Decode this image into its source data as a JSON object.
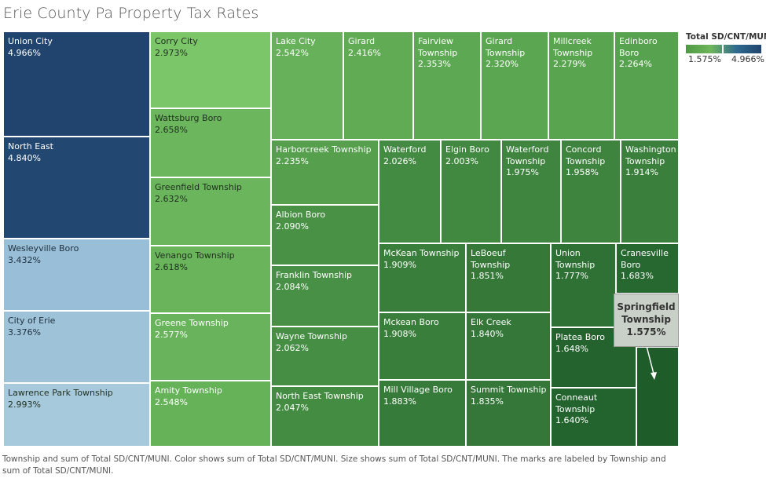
{
  "title": "Erie County Pa Property Tax Rates",
  "caption": "Township and sum of Total SD/CNT/MUNI.  Color shows sum of Total SD/CNT/MUNI.  Size shows sum of Total SD/CNT/MUNI.  The marks are labeled by Township and sum of Total SD/CNT/MUNI.",
  "legend": {
    "title": "Total SD/CNT/MUNI",
    "min_label": "1.575%",
    "max_label": "4.966%"
  },
  "tooltip": {
    "name": "Springfield Township",
    "value": "1.575%"
  },
  "colors": {
    "low_green": "#1e5c2a",
    "mid_green": "#5aa650",
    "light_green": "#7cc66a",
    "light_blue": "#a7c9dc",
    "dark_blue": "#20446e"
  },
  "chart_data": {
    "type": "treemap",
    "measure": "Total SD/CNT/MUNI",
    "color_range": [
      1.575,
      4.966
    ],
    "items": [
      {
        "name": "Union City",
        "value": 4.966,
        "label": "4.966%"
      },
      {
        "name": "North East",
        "value": 4.84,
        "label": "4.840%"
      },
      {
        "name": "Wesleyville Boro",
        "value": 3.432,
        "label": "3.432%"
      },
      {
        "name": "City of Erie",
        "value": 3.376,
        "label": "3.376%"
      },
      {
        "name": "Lawrence Park Township",
        "value": 2.993,
        "label": "2.993%"
      },
      {
        "name": "Corry City",
        "value": 2.973,
        "label": "2.973%"
      },
      {
        "name": "Wattsburg Boro",
        "value": 2.658,
        "label": "2.658%"
      },
      {
        "name": "Greenfield Township",
        "value": 2.632,
        "label": "2.632%"
      },
      {
        "name": "Venango Township",
        "value": 2.618,
        "label": "2.618%"
      },
      {
        "name": "Greene Township",
        "value": 2.577,
        "label": "2.577%"
      },
      {
        "name": "Amity Township",
        "value": 2.548,
        "label": "2.548%"
      },
      {
        "name": "Lake City",
        "value": 2.542,
        "label": "2.542%"
      },
      {
        "name": "Girard",
        "value": 2.416,
        "label": "2.416%"
      },
      {
        "name": "Fairview Township",
        "value": 2.353,
        "label": "2.353%"
      },
      {
        "name": "Girard Township",
        "value": 2.32,
        "label": "2.320%"
      },
      {
        "name": "Millcreek Township",
        "value": 2.279,
        "label": "2.279%"
      },
      {
        "name": "Edinboro Boro",
        "value": 2.264,
        "label": "2.264%"
      },
      {
        "name": "Harborcreek Township",
        "value": 2.235,
        "label": "2.235%"
      },
      {
        "name": "Albion Boro",
        "value": 2.09,
        "label": "2.090%"
      },
      {
        "name": "Franklin Township",
        "value": 2.084,
        "label": "2.084%"
      },
      {
        "name": "Wayne Township",
        "value": 2.062,
        "label": "2.062%"
      },
      {
        "name": "North East Township",
        "value": 2.047,
        "label": "2.047%"
      },
      {
        "name": "Waterford",
        "value": 2.026,
        "label": "2.026%"
      },
      {
        "name": "Elgin Boro",
        "value": 2.003,
        "label": "2.003%"
      },
      {
        "name": "Waterford Township",
        "value": 1.975,
        "label": "1.975%"
      },
      {
        "name": "Concord Township",
        "value": 1.958,
        "label": "1.958%"
      },
      {
        "name": "Washington Township",
        "value": 1.914,
        "label": "1.914%"
      },
      {
        "name": "McKean Township",
        "value": 1.909,
        "label": "1.909%"
      },
      {
        "name": "LeBoeuf Township",
        "value": 1.851,
        "label": "1.851%"
      },
      {
        "name": "Union Township",
        "value": 1.777,
        "label": "1.777%"
      },
      {
        "name": "Cranesville Boro",
        "value": 1.683,
        "label": "1.683%"
      },
      {
        "name": "Mckean Boro",
        "value": 1.908,
        "label": "1.908%"
      },
      {
        "name": "Elk Creek",
        "value": 1.84,
        "label": "1.840%"
      },
      {
        "name": "Platea Boro",
        "value": 1.648,
        "label": "1.648%"
      },
      {
        "name": "Mill Village Boro",
        "value": 1.883,
        "label": "1.883%"
      },
      {
        "name": "Summit Township",
        "value": 1.835,
        "label": "1.835%"
      },
      {
        "name": "Conneaut Township",
        "value": 1.64,
        "label": "1.640%"
      },
      {
        "name": "Springfield Township",
        "value": 1.575,
        "label": ""
      }
    ]
  }
}
